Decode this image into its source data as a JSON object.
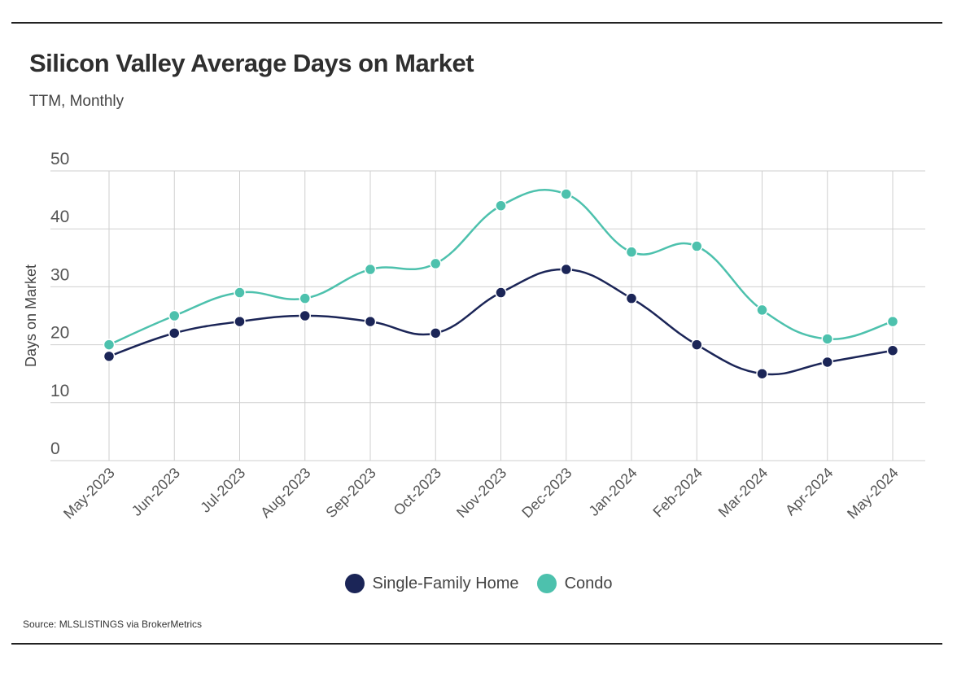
{
  "chart_data": {
    "type": "line",
    "title": "Silicon Valley Average Days on Market",
    "subtitle": "TTM, Monthly",
    "ylabel": "Days on Market",
    "xlabel": "",
    "ylim": [
      0,
      50
    ],
    "yticks": [
      0,
      10,
      20,
      30,
      40,
      50
    ],
    "grid": true,
    "legend_position": "bottom",
    "categories": [
      "May-2023",
      "Jun-2023",
      "Jul-2023",
      "Aug-2023",
      "Sep-2023",
      "Oct-2023",
      "Nov-2023",
      "Dec-2023",
      "Jan-2024",
      "Feb-2024",
      "Mar-2024",
      "Apr-2024",
      "May-2024"
    ],
    "series": [
      {
        "name": "Single-Family Home",
        "color": "#1b2557",
        "values": [
          18,
          22,
          24,
          25,
          24,
          22,
          29,
          33,
          28,
          20,
          15,
          17,
          19
        ]
      },
      {
        "name": "Condo",
        "color": "#4dc1ad",
        "values": [
          20,
          25,
          29,
          28,
          33,
          34,
          44,
          46,
          36,
          37,
          26,
          21,
          24
        ]
      }
    ],
    "source": "Source:  MLSLISTINGS via BrokerMetrics"
  }
}
